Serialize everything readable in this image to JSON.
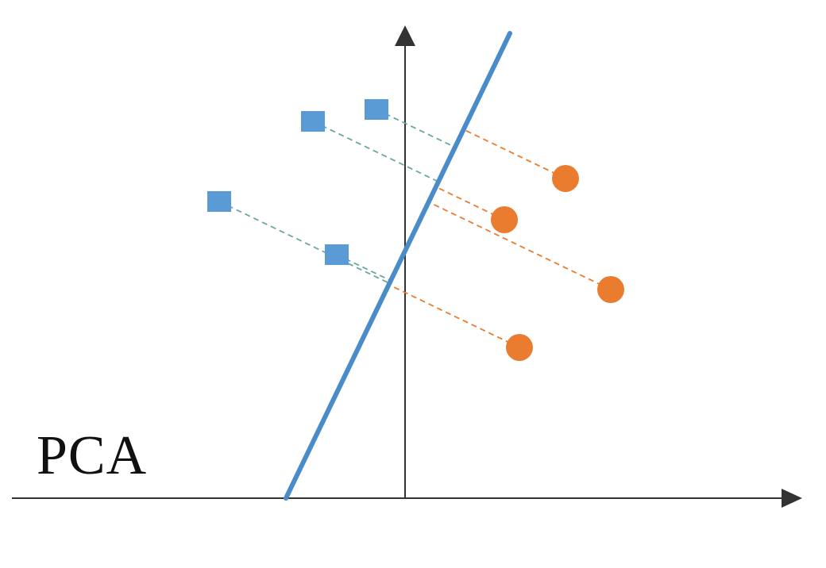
{
  "diagram": {
    "label": "PCA",
    "colors": {
      "axis": "#333333",
      "component_line": "#4a8cc9",
      "class_a": "#5b9bd5",
      "class_b": "#e97c2f",
      "projection_a": "#6aa7a2",
      "projection_b": "#e97c2f"
    },
    "class_a_marker": "square",
    "class_b_marker": "circle"
  }
}
